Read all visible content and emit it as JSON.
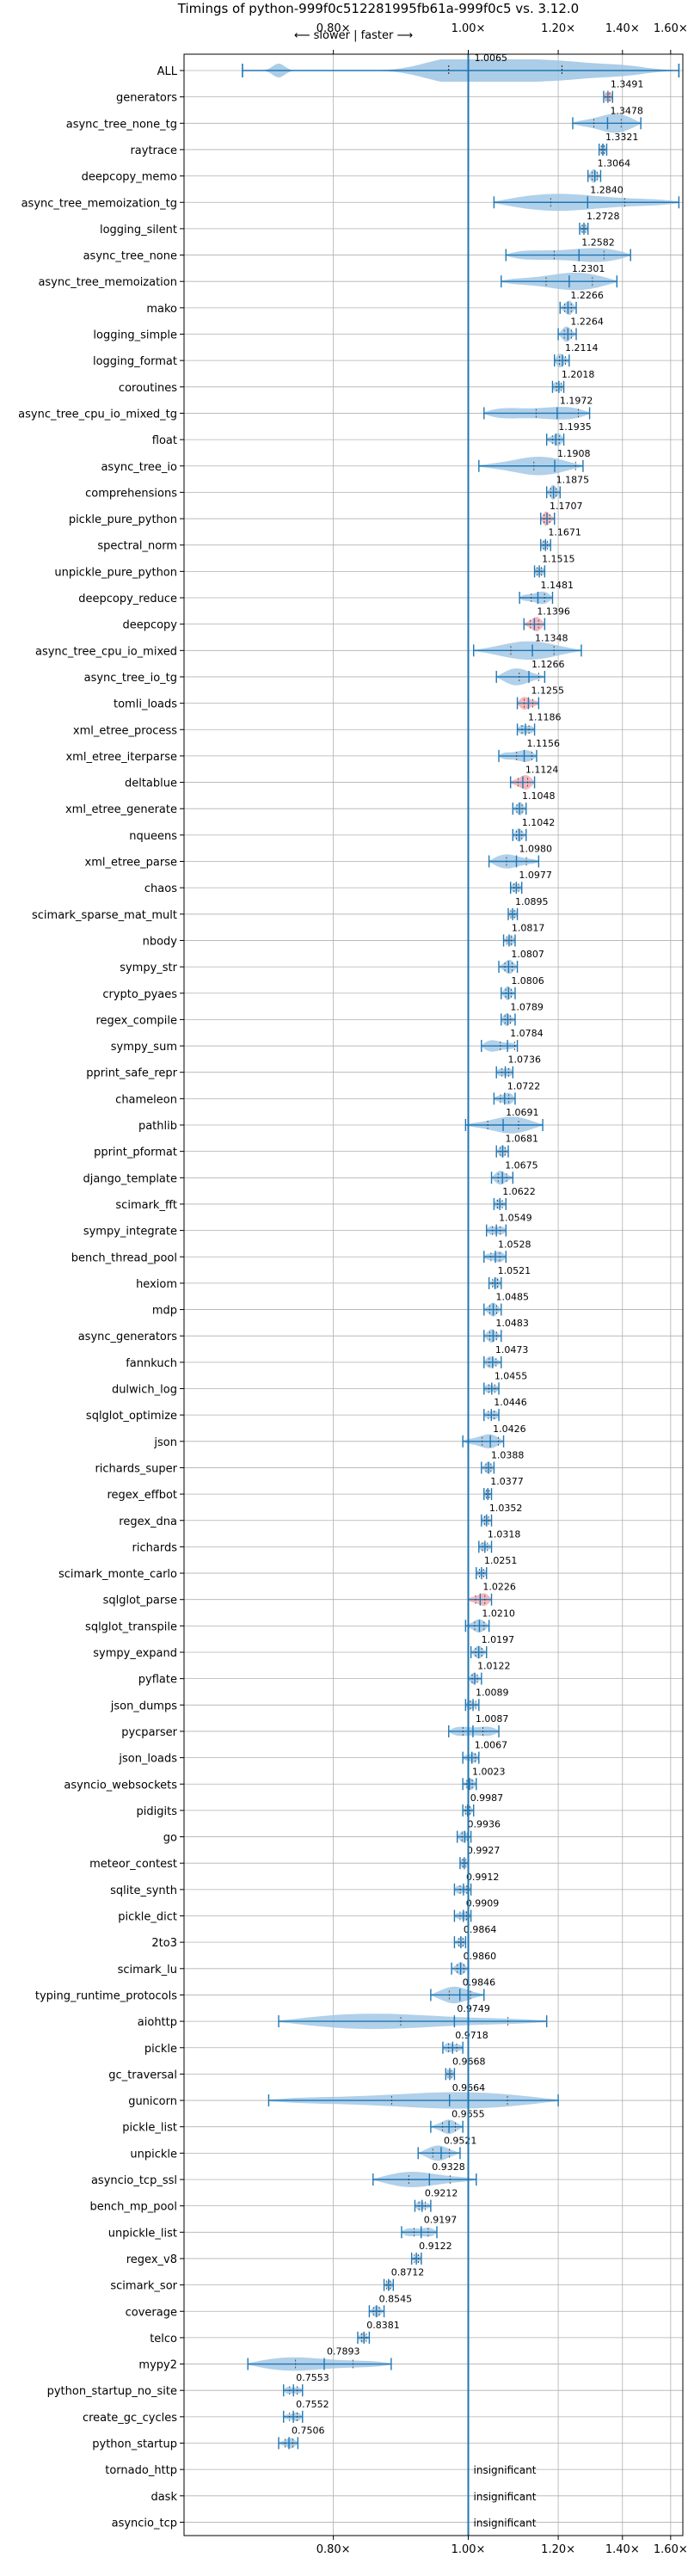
{
  "chart_data": {
    "type": "violin",
    "title": "Timings of python-999f0c512281995fb61a-999f0c5 vs. 3.12.0",
    "annotation": "⟵ slower | faster ⟶",
    "x_scale": "reciprocal",
    "xlim": [
      0.655,
      1.66
    ],
    "ref_value": 1.0,
    "xticks": [
      0.8,
      1.0,
      1.2,
      1.4,
      1.6
    ],
    "xtick_labels": [
      "0.80×",
      "1.00×",
      "1.20×",
      "1.40×",
      "1.60×"
    ],
    "grid": true,
    "colors": {
      "violin": "#9ec4e3",
      "line": "#1f77b4",
      "highlight": "#f4a6ad"
    },
    "insignificant_label": "insignificant",
    "benchmarks": [
      {
        "name": "ALL",
        "value": 1.0065,
        "label": "1.0065",
        "lo": 0.705,
        "hi": 1.64,
        "q1": 0.965,
        "q3": 1.21,
        "style": "all"
      },
      {
        "name": "generators",
        "value": 1.3491,
        "label": "1.3491",
        "lo": 1.335,
        "hi": 1.365,
        "width": 0.4,
        "highlight": true
      },
      {
        "name": "async_tree_none_tg",
        "value": 1.3478,
        "label": "1.3478",
        "lo": 1.24,
        "hi": 1.47,
        "width": 0.9
      },
      {
        "name": "raytrace",
        "value": 1.3321,
        "label": "1.3321",
        "lo": 1.32,
        "hi": 1.345,
        "width": 0.35
      },
      {
        "name": "deepcopy_memo",
        "value": 1.3064,
        "label": "1.3064",
        "lo": 1.285,
        "hi": 1.325,
        "width": 0.45
      },
      {
        "name": "async_tree_memoization_tg",
        "value": 1.284,
        "label": "1.2840",
        "lo": 1.05,
        "hi": 1.64,
        "width": 0.85
      },
      {
        "name": "logging_silent",
        "value": 1.2728,
        "label": "1.2728",
        "lo": 1.26,
        "hi": 1.285,
        "width": 0.3
      },
      {
        "name": "async_tree_none",
        "value": 1.2582,
        "label": "1.2582",
        "lo": 1.075,
        "hi": 1.43,
        "width": 0.85
      },
      {
        "name": "async_tree_memoization",
        "value": 1.2301,
        "label": "1.2301",
        "lo": 1.065,
        "hi": 1.38,
        "width": 0.85
      },
      {
        "name": "mako",
        "value": 1.2266,
        "label": "1.2266",
        "lo": 1.205,
        "hi": 1.25,
        "width": 0.5
      },
      {
        "name": "logging_simple",
        "value": 1.2264,
        "label": "1.2264",
        "lo": 1.2,
        "hi": 1.25,
        "width": 0.55
      },
      {
        "name": "logging_format",
        "value": 1.2114,
        "label": "1.2114",
        "lo": 1.19,
        "hi": 1.23,
        "width": 0.55
      },
      {
        "name": "coroutines",
        "value": 1.2018,
        "label": "1.2018",
        "lo": 1.185,
        "hi": 1.215,
        "width": 0.45
      },
      {
        "name": "async_tree_cpu_io_mixed_tg",
        "value": 1.1972,
        "label": "1.1972",
        "lo": 1.03,
        "hi": 1.29,
        "width": 0.85
      },
      {
        "name": "float",
        "value": 1.1935,
        "label": "1.1935",
        "lo": 1.17,
        "hi": 1.215,
        "width": 0.55
      },
      {
        "name": "async_tree_io",
        "value": 1.1908,
        "label": "1.1908",
        "lo": 1.02,
        "hi": 1.27,
        "width": 0.8
      },
      {
        "name": "comprehensions",
        "value": 1.1875,
        "label": "1.1875",
        "lo": 1.17,
        "hi": 1.205,
        "width": 0.5
      },
      {
        "name": "pickle_pure_python",
        "value": 1.1707,
        "label": "1.1707",
        "lo": 1.155,
        "hi": 1.19,
        "width": 0.55,
        "highlight": true
      },
      {
        "name": "spectral_norm",
        "value": 1.1671,
        "label": "1.1671",
        "lo": 1.155,
        "hi": 1.18,
        "width": 0.35
      },
      {
        "name": "unpickle_pure_python",
        "value": 1.1515,
        "label": "1.1515",
        "lo": 1.14,
        "hi": 1.165,
        "width": 0.45
      },
      {
        "name": "deepcopy_reduce",
        "value": 1.1481,
        "label": "1.1481",
        "lo": 1.105,
        "hi": 1.185,
        "width": 0.6
      },
      {
        "name": "deepcopy",
        "value": 1.1396,
        "label": "1.1396",
        "lo": 1.115,
        "hi": 1.165,
        "width": 0.55,
        "highlight": true
      },
      {
        "name": "async_tree_cpu_io_mixed",
        "value": 1.1348,
        "label": "1.1348",
        "lo": 1.01,
        "hi": 1.265,
        "width": 0.75
      },
      {
        "name": "async_tree_io_tg",
        "value": 1.1266,
        "label": "1.1266",
        "lo": 1.055,
        "hi": 1.165,
        "width": 0.7
      },
      {
        "name": "tomli_loads",
        "value": 1.1255,
        "label": "1.1255",
        "lo": 1.1,
        "hi": 1.15,
        "width": 0.55,
        "highlight": true
      },
      {
        "name": "xml_etree_process",
        "value": 1.1186,
        "label": "1.1186",
        "lo": 1.1,
        "hi": 1.14,
        "width": 0.5
      },
      {
        "name": "xml_etree_iterparse",
        "value": 1.1156,
        "label": "1.1156",
        "lo": 1.06,
        "hi": 1.145,
        "width": 0.6
      },
      {
        "name": "deltablue",
        "value": 1.1124,
        "label": "1.1124",
        "lo": 1.085,
        "hi": 1.14,
        "width": 0.6,
        "highlight": true
      },
      {
        "name": "xml_etree_generate",
        "value": 1.1048,
        "label": "1.1048",
        "lo": 1.09,
        "hi": 1.12,
        "width": 0.4
      },
      {
        "name": "nqueens",
        "value": 1.1042,
        "label": "1.1042",
        "lo": 1.09,
        "hi": 1.12,
        "width": 0.45
      },
      {
        "name": "xml_etree_parse",
        "value": 1.098,
        "label": "1.0980",
        "lo": 1.04,
        "hi": 1.15,
        "width": 0.6
      },
      {
        "name": "chaos",
        "value": 1.0977,
        "label": "1.0977",
        "lo": 1.085,
        "hi": 1.11,
        "width": 0.4
      },
      {
        "name": "scimark_sparse_mat_mult",
        "value": 1.0895,
        "label": "1.0895",
        "lo": 1.08,
        "hi": 1.1,
        "width": 0.35
      },
      {
        "name": "nbody",
        "value": 1.0817,
        "label": "1.0817",
        "lo": 1.07,
        "hi": 1.095,
        "width": 0.4
      },
      {
        "name": "sympy_str",
        "value": 1.0807,
        "label": "1.0807",
        "lo": 1.06,
        "hi": 1.1,
        "width": 0.5
      },
      {
        "name": "crypto_pyaes",
        "value": 1.0806,
        "label": "1.0806",
        "lo": 1.065,
        "hi": 1.095,
        "width": 0.45
      },
      {
        "name": "regex_compile",
        "value": 1.0789,
        "label": "1.0789",
        "lo": 1.065,
        "hi": 1.095,
        "width": 0.45
      },
      {
        "name": "sympy_sum",
        "value": 1.0784,
        "label": "1.0784",
        "lo": 1.025,
        "hi": 1.1,
        "width": 0.55
      },
      {
        "name": "pprint_safe_repr",
        "value": 1.0736,
        "label": "1.0736",
        "lo": 1.055,
        "hi": 1.09,
        "width": 0.45
      },
      {
        "name": "chameleon",
        "value": 1.0722,
        "label": "1.0722",
        "lo": 1.05,
        "hi": 1.095,
        "width": 0.5
      },
      {
        "name": "pathlib",
        "value": 1.0691,
        "label": "1.0691",
        "lo": 0.995,
        "hi": 1.16,
        "width": 0.7
      },
      {
        "name": "pprint_pformat",
        "value": 1.0681,
        "label": "1.0681",
        "lo": 1.055,
        "hi": 1.08,
        "width": 0.35
      },
      {
        "name": "django_template",
        "value": 1.0675,
        "label": "1.0675",
        "lo": 1.045,
        "hi": 1.09,
        "width": 0.5
      },
      {
        "name": "scimark_fft",
        "value": 1.0622,
        "label": "1.0622",
        "lo": 1.05,
        "hi": 1.075,
        "width": 0.35
      },
      {
        "name": "sympy_integrate",
        "value": 1.0549,
        "label": "1.0549",
        "lo": 1.035,
        "hi": 1.075,
        "width": 0.5
      },
      {
        "name": "bench_thread_pool",
        "value": 1.0528,
        "label": "1.0528",
        "lo": 1.03,
        "hi": 1.075,
        "width": 0.5
      },
      {
        "name": "hexiom",
        "value": 1.0521,
        "label": "1.0521",
        "lo": 1.04,
        "hi": 1.065,
        "width": 0.35
      },
      {
        "name": "mdp",
        "value": 1.0485,
        "label": "1.0485",
        "lo": 1.03,
        "hi": 1.065,
        "width": 0.45
      },
      {
        "name": "async_generators",
        "value": 1.0483,
        "label": "1.0483",
        "lo": 1.03,
        "hi": 1.065,
        "width": 0.45
      },
      {
        "name": "fannkuch",
        "value": 1.0473,
        "label": "1.0473",
        "lo": 1.03,
        "hi": 1.065,
        "width": 0.45
      },
      {
        "name": "dulwich_log",
        "value": 1.0455,
        "label": "1.0455",
        "lo": 1.03,
        "hi": 1.06,
        "width": 0.4
      },
      {
        "name": "sqlglot_optimize",
        "value": 1.0446,
        "label": "1.0446",
        "lo": 1.03,
        "hi": 1.06,
        "width": 0.4
      },
      {
        "name": "json",
        "value": 1.0426,
        "label": "1.0426",
        "lo": 0.99,
        "hi": 1.07,
        "width": 0.6
      },
      {
        "name": "richards_super",
        "value": 1.0388,
        "label": "1.0388",
        "lo": 1.025,
        "hi": 1.05,
        "width": 0.35
      },
      {
        "name": "regex_effbot",
        "value": 1.0377,
        "label": "1.0377",
        "lo": 1.03,
        "hi": 1.045,
        "width": 0.25
      },
      {
        "name": "regex_dna",
        "value": 1.0352,
        "label": "1.0352",
        "lo": 1.025,
        "hi": 1.045,
        "width": 0.3
      },
      {
        "name": "richards",
        "value": 1.0318,
        "label": "1.0318",
        "lo": 1.02,
        "hi": 1.045,
        "width": 0.35
      },
      {
        "name": "scimark_monte_carlo",
        "value": 1.0251,
        "label": "1.0251",
        "lo": 1.015,
        "hi": 1.035,
        "width": 0.3
      },
      {
        "name": "sqlglot_parse",
        "value": 1.0226,
        "label": "1.0226",
        "lo": 1.0,
        "hi": 1.045,
        "width": 0.55,
        "highlight": true
      },
      {
        "name": "sqlglot_transpile",
        "value": 1.021,
        "label": "1.0210",
        "lo": 0.995,
        "hi": 1.04,
        "width": 0.45
      },
      {
        "name": "sympy_expand",
        "value": 1.0197,
        "label": "1.0197",
        "lo": 1.005,
        "hi": 1.035,
        "width": 0.4
      },
      {
        "name": "pyflate",
        "value": 1.0122,
        "label": "1.0122",
        "lo": 1.0,
        "hi": 1.025,
        "width": 0.35
      },
      {
        "name": "json_dumps",
        "value": 1.0089,
        "label": "1.0089",
        "lo": 0.995,
        "hi": 1.02,
        "width": 0.35
      },
      {
        "name": "pycparser",
        "value": 1.0087,
        "label": "1.0087",
        "lo": 0.965,
        "hi": 1.06,
        "width": 0.6
      },
      {
        "name": "json_loads",
        "value": 1.0067,
        "label": "1.0067",
        "lo": 0.99,
        "hi": 1.02,
        "width": 0.4
      },
      {
        "name": "asyncio_websockets",
        "value": 1.0023,
        "label": "1.0023",
        "lo": 0.99,
        "hi": 1.015,
        "width": 0.35
      },
      {
        "name": "pidigits",
        "value": 0.9987,
        "label": "0.9987",
        "lo": 0.99,
        "hi": 1.01,
        "width": 0.3
      },
      {
        "name": "go",
        "value": 0.9936,
        "label": "0.9936",
        "lo": 0.98,
        "hi": 1.005,
        "width": 0.35
      },
      {
        "name": "meteor_contest",
        "value": 0.9927,
        "label": "0.9927",
        "lo": 0.985,
        "hi": 1.0,
        "width": 0.3
      },
      {
        "name": "sqlite_synth",
        "value": 0.9912,
        "label": "0.9912",
        "lo": 0.975,
        "hi": 1.005,
        "width": 0.4
      },
      {
        "name": "pickle_dict",
        "value": 0.9909,
        "label": "0.9909",
        "lo": 0.975,
        "hi": 1.005,
        "width": 0.4
      },
      {
        "name": "2to3",
        "value": 0.9864,
        "label": "0.9864",
        "lo": 0.975,
        "hi": 0.995,
        "width": 0.3
      },
      {
        "name": "scimark_lu",
        "value": 0.986,
        "label": "0.9860",
        "lo": 0.97,
        "hi": 1.0,
        "width": 0.4
      },
      {
        "name": "typing_runtime_protocols",
        "value": 0.9846,
        "label": "0.9846",
        "lo": 0.935,
        "hi": 1.03,
        "width": 0.65
      },
      {
        "name": "aiohttp",
        "value": 0.9749,
        "label": "0.9749",
        "lo": 0.74,
        "hi": 1.17,
        "width": 0.7
      },
      {
        "name": "pickle",
        "value": 0.9718,
        "label": "0.9718",
        "lo": 0.955,
        "hi": 0.99,
        "width": 0.45
      },
      {
        "name": "gc_traversal",
        "value": 0.9668,
        "label": "0.9668",
        "lo": 0.96,
        "hi": 0.975,
        "width": 0.25
      },
      {
        "name": "gunicorn",
        "value": 0.9664,
        "label": "0.9664",
        "lo": 0.73,
        "hi": 1.2,
        "width": 0.8
      },
      {
        "name": "pickle_list",
        "value": 0.9655,
        "label": "0.9655",
        "lo": 0.935,
        "hi": 0.99,
        "width": 0.5
      },
      {
        "name": "unpickle",
        "value": 0.9521,
        "label": "0.9521",
        "lo": 0.915,
        "hi": 0.985,
        "width": 0.55
      },
      {
        "name": "asyncio_tcp_ssl",
        "value": 0.9328,
        "label": "0.9328",
        "lo": 0.85,
        "hi": 1.015,
        "width": 0.65
      },
      {
        "name": "bench_mp_pool",
        "value": 0.9212,
        "label": "0.9212",
        "lo": 0.91,
        "hi": 0.935,
        "width": 0.35
      },
      {
        "name": "unpickle_list",
        "value": 0.9197,
        "label": "0.9197",
        "lo": 0.89,
        "hi": 0.945,
        "width": 0.5
      },
      {
        "name": "regex_v8",
        "value": 0.9122,
        "label": "0.9122",
        "lo": 0.905,
        "hi": 0.92,
        "width": 0.25
      },
      {
        "name": "scimark_sor",
        "value": 0.8712,
        "label": "0.8712",
        "lo": 0.865,
        "hi": 0.878,
        "width": 0.25
      },
      {
        "name": "coverage",
        "value": 0.8545,
        "label": "0.8545",
        "lo": 0.845,
        "hi": 0.865,
        "width": 0.3
      },
      {
        "name": "telco",
        "value": 0.8381,
        "label": "0.8381",
        "lo": 0.83,
        "hi": 0.845,
        "width": 0.25
      },
      {
        "name": "mypy2",
        "value": 0.7893,
        "label": "0.7893",
        "lo": 0.71,
        "hi": 0.875,
        "width": 0.65
      },
      {
        "name": "python_startup_no_site",
        "value": 0.7553,
        "label": "0.7553",
        "lo": 0.745,
        "hi": 0.765,
        "width": 0.3
      },
      {
        "name": "create_gc_cycles",
        "value": 0.7552,
        "label": "0.7552",
        "lo": 0.745,
        "hi": 0.765,
        "width": 0.3
      },
      {
        "name": "python_startup",
        "value": 0.7506,
        "label": "0.7506",
        "lo": 0.74,
        "hi": 0.76,
        "width": 0.3
      },
      {
        "name": "tornado_http",
        "insignificant": true
      },
      {
        "name": "dask",
        "insignificant": true
      },
      {
        "name": "asyncio_tcp",
        "insignificant": true
      }
    ]
  }
}
